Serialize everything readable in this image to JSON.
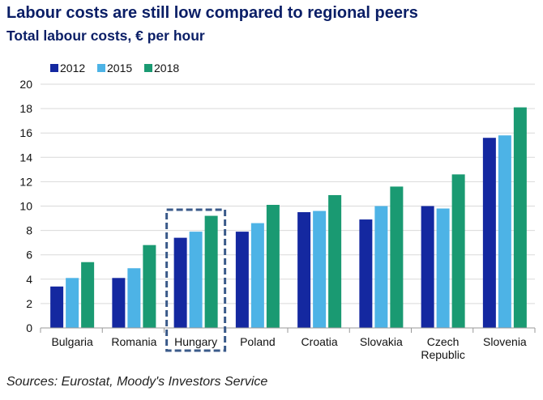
{
  "chart_data": {
    "type": "bar",
    "title": "Labour costs are still low compared to regional peers",
    "subtitle": "Total labour costs, € per hour",
    "source": "Sources: Eurostat, Moody's Investors Service",
    "categories": [
      "Bulgaria",
      "Romania",
      "Hungary",
      "Poland",
      "Croatia",
      "Slovakia",
      "Czech Republic",
      "Slovenia"
    ],
    "series": [
      {
        "name": "2012",
        "color": "#1428a0",
        "values": [
          3.4,
          4.1,
          7.4,
          7.9,
          9.5,
          8.9,
          10.0,
          15.6
        ]
      },
      {
        "name": "2015",
        "color": "#4db3e6",
        "values": [
          4.1,
          4.9,
          7.9,
          8.6,
          9.6,
          10.0,
          9.8,
          15.8
        ]
      },
      {
        "name": "2018",
        "color": "#1a9a72",
        "values": [
          5.4,
          6.8,
          9.2,
          10.1,
          10.9,
          11.6,
          12.6,
          18.1
        ]
      }
    ],
    "ylim": [
      0,
      20
    ],
    "yticks": [
      "0",
      "2",
      "4",
      "6",
      "8",
      "10",
      "12",
      "14",
      "16",
      "18",
      "20"
    ],
    "grid": true,
    "legend": "top-left",
    "highlight": "Hungary",
    "highlight_style": "dashed-box",
    "colors": {
      "title": "#0a1e66",
      "grid": "#d9d9d9",
      "highlight": "#3a5a8a"
    }
  }
}
